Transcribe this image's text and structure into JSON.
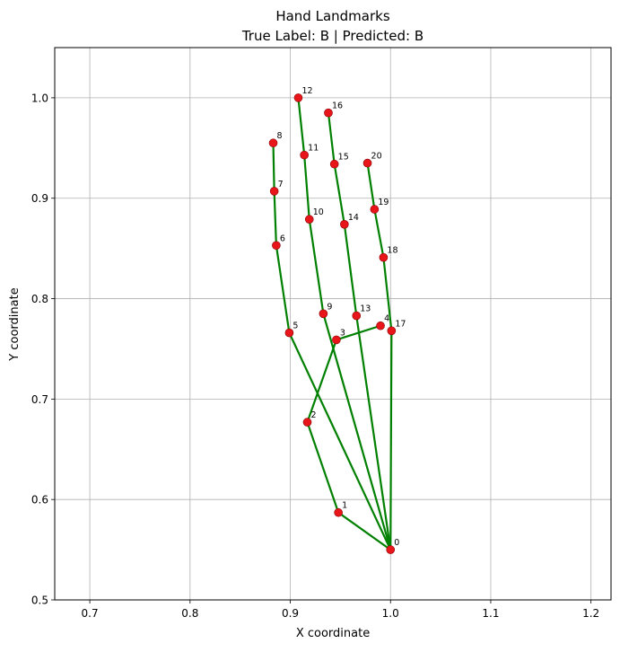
{
  "chart_data": {
    "type": "scatter",
    "title": "Hand Landmarks",
    "subtitle": "True Label: B | Predicted: B",
    "xlabel": "X coordinate",
    "ylabel": "Y coordinate",
    "xlim": [
      0.665,
      1.22
    ],
    "ylim": [
      0.5,
      1.05
    ],
    "x_ticks": [
      0.7,
      0.8,
      0.9,
      1.0,
      1.1,
      1.2
    ],
    "y_ticks": [
      0.5,
      0.6,
      0.7,
      0.8,
      0.9,
      1.0
    ],
    "x_tick_labels": [
      "0.7",
      "0.8",
      "0.9",
      "1.0",
      "1.1",
      "1.2"
    ],
    "y_tick_labels": [
      "0.5",
      "0.6",
      "0.7",
      "0.8",
      "0.9",
      "1.0"
    ],
    "grid": true,
    "point_color": "#e8161b",
    "line_color": "#008000",
    "points": [
      {
        "label": "0",
        "x": 1.0,
        "y": 0.55
      },
      {
        "label": "1",
        "x": 0.948,
        "y": 0.587
      },
      {
        "label": "2",
        "x": 0.917,
        "y": 0.677
      },
      {
        "label": "3",
        "x": 0.946,
        "y": 0.759
      },
      {
        "label": "4",
        "x": 0.99,
        "y": 0.773
      },
      {
        "label": "5",
        "x": 0.899,
        "y": 0.766
      },
      {
        "label": "6",
        "x": 0.886,
        "y": 0.853
      },
      {
        "label": "7",
        "x": 0.884,
        "y": 0.907
      },
      {
        "label": "8",
        "x": 0.883,
        "y": 0.955
      },
      {
        "label": "9",
        "x": 0.933,
        "y": 0.785
      },
      {
        "label": "10",
        "x": 0.919,
        "y": 0.879
      },
      {
        "label": "11",
        "x": 0.914,
        "y": 0.943
      },
      {
        "label": "12",
        "x": 0.908,
        "y": 1.0
      },
      {
        "label": "13",
        "x": 0.966,
        "y": 0.783
      },
      {
        "label": "14",
        "x": 0.954,
        "y": 0.874
      },
      {
        "label": "15",
        "x": 0.944,
        "y": 0.934
      },
      {
        "label": "16",
        "x": 0.938,
        "y": 0.985
      },
      {
        "label": "17",
        "x": 1.001,
        "y": 0.768
      },
      {
        "label": "18",
        "x": 0.993,
        "y": 0.841
      },
      {
        "label": "19",
        "x": 0.984,
        "y": 0.889
      },
      {
        "label": "20",
        "x": 0.977,
        "y": 0.935
      }
    ],
    "connections": [
      [
        0,
        1
      ],
      [
        1,
        2
      ],
      [
        2,
        3
      ],
      [
        3,
        4
      ],
      [
        0,
        5
      ],
      [
        5,
        6
      ],
      [
        6,
        7
      ],
      [
        7,
        8
      ],
      [
        0,
        9
      ],
      [
        9,
        10
      ],
      [
        10,
        11
      ],
      [
        11,
        12
      ],
      [
        0,
        13
      ],
      [
        13,
        14
      ],
      [
        14,
        15
      ],
      [
        15,
        16
      ],
      [
        0,
        17
      ],
      [
        17,
        18
      ],
      [
        18,
        19
      ],
      [
        19,
        20
      ]
    ]
  }
}
